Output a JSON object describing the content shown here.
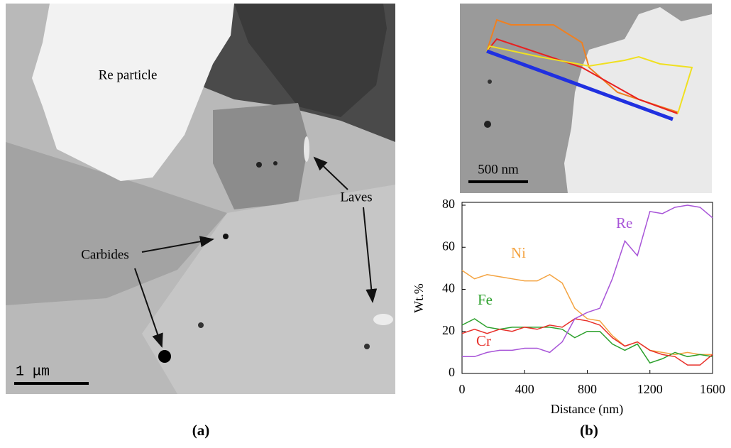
{
  "figure": {
    "panel_a": {
      "labels": [
        "Re particle",
        "Carbides",
        "Laves"
      ],
      "scale_bar": "1 μm",
      "caption": "(a)"
    },
    "panel_b": {
      "scale_bar": "500 nm",
      "caption": "(b)"
    }
  },
  "chart_data": {
    "type": "line",
    "x_label": "Distance (nm)",
    "y_label": "Wt.%",
    "x": [
      0,
      80,
      160,
      240,
      320,
      400,
      480,
      560,
      640,
      720,
      800,
      880,
      960,
      1040,
      1120,
      1200,
      1280,
      1360,
      1440,
      1520,
      1600
    ],
    "series": [
      {
        "name": "Ni",
        "color": "#f4a340",
        "values": [
          49,
          45,
          47,
          46,
          45,
          44,
          44,
          47,
          43,
          31,
          26,
          25,
          18,
          13,
          15,
          11,
          10,
          9,
          10,
          9,
          9
        ]
      },
      {
        "name": "Fe",
        "color": "#2ca02c",
        "values": [
          23,
          26,
          22,
          21,
          22,
          22,
          22,
          22,
          21,
          17,
          20,
          20,
          14,
          11,
          14,
          5,
          7,
          10,
          8,
          9,
          8
        ]
      },
      {
        "name": "Cr",
        "color": "#e8302a",
        "values": [
          19,
          21,
          19,
          21,
          20,
          22,
          21,
          23,
          22,
          26,
          25,
          23,
          17,
          13,
          15,
          11,
          9,
          8,
          4,
          4,
          9
        ]
      },
      {
        "name": "Re",
        "color": "#a855d8",
        "values": [
          8,
          8,
          10,
          11,
          11,
          12,
          12,
          10,
          15,
          26,
          29,
          31,
          45,
          63,
          56,
          77,
          76,
          79,
          80,
          79,
          74
        ]
      }
    ],
    "xlim": [
      0,
      1600
    ],
    "xticks": [
      0,
      400,
      800,
      1200,
      1600
    ],
    "ylim": [
      0,
      80
    ],
    "yticks": [
      0,
      20,
      40,
      60,
      80
    ]
  }
}
